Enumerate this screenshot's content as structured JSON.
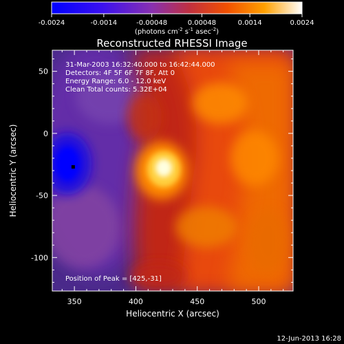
{
  "chart_data": {
    "type": "heatmap",
    "title": "Reconstructed RHESSI Image",
    "colorbar": {
      "ticks": [
        "-0.0024",
        "-0.0014",
        "-0.00048",
        "0.00048",
        "0.0014",
        "0.0024"
      ],
      "tick_values": [
        -0.0024,
        -0.0014,
        -0.00048,
        0.00048,
        0.0014,
        0.0024
      ],
      "range": [
        -0.0024,
        0.0024
      ],
      "unit_base": "(photons cm",
      "unit_exp1": "-2",
      "unit_mid1": " s",
      "unit_exp2": "-1",
      "unit_mid2": " asec",
      "unit_exp3": "-2",
      "unit_close": ")"
    },
    "xlabel": "Heliocentric X (arcsec)",
    "ylabel": "Heliocentric Y (arcsec)",
    "xlim": [
      332,
      528
    ],
    "ylim": [
      -127,
      67
    ],
    "xticks": [
      350,
      400,
      450,
      500
    ],
    "yticks": [
      -100,
      -50,
      0,
      50
    ],
    "info_lines": [
      "31-Mar-2003 16:32:40.000 to 16:42:44.000",
      "Detectors: 4F 5F 6F 7F 8F, Att 0",
      "Energy Range: 6.0 - 12.0 keV",
      "Clean    Total counts: 5.32E+04"
    ],
    "peak_label": "Position of Peak = [425,-31]",
    "peak": [
      425,
      -31
    ],
    "source_peak_center": [
      420,
      -31
    ],
    "minimum_marker": [
      349,
      -27
    ],
    "colormap": [
      "#0000ff",
      "#6a1fc8",
      "#8b3a9a",
      "#d04010",
      "#ff8000",
      "#ffd000",
      "#ffffff"
    ]
  },
  "footer_date": "12-Jun-2013 16:28"
}
